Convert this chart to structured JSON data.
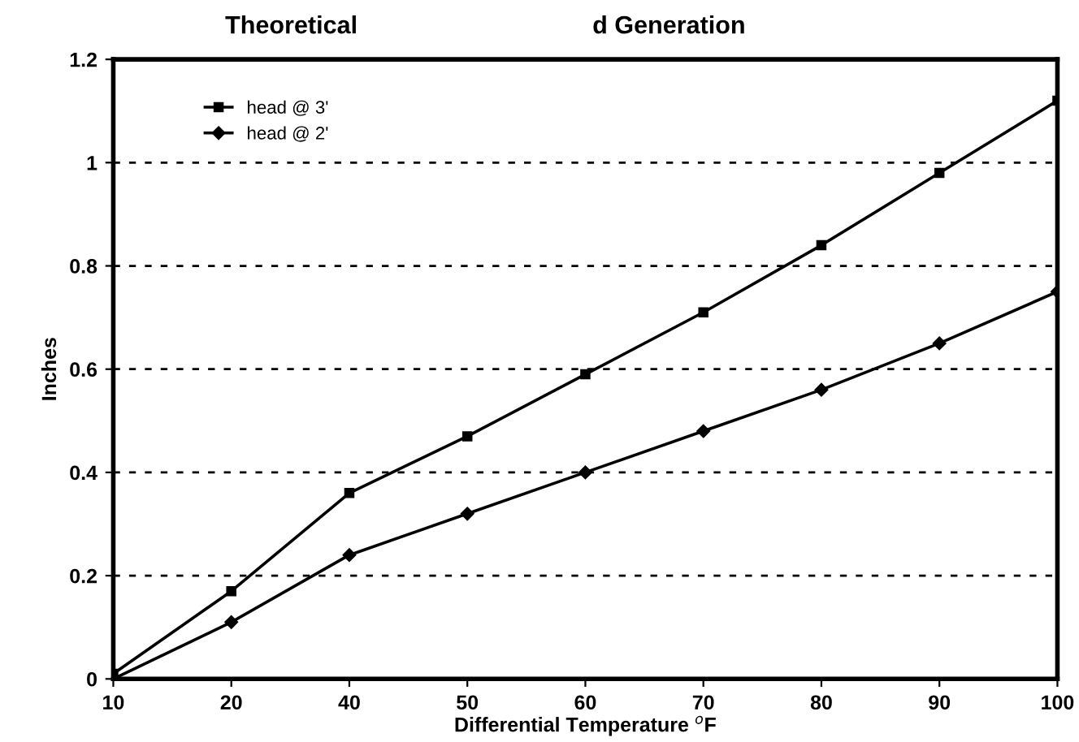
{
  "chart_data": {
    "type": "line",
    "title": "Theoretical",
    "subtitle": "d Generation",
    "xlabel": "Differential Temperature $^{o}$F",
    "ylabel": "Inches",
    "categories": [
      "10",
      "20",
      "40",
      "50",
      "60",
      "70",
      "80",
      "90",
      "100"
    ],
    "series": [
      {
        "name": "head @ 3'",
        "color": "#000000",
        "marker": "square",
        "values": [
          0.01,
          0.17,
          0.36,
          0.47,
          0.59,
          0.71,
          0.84,
          0.98,
          1.12
        ]
      },
      {
        "name": "head @ 2'",
        "color": "#000000",
        "marker": "diamond",
        "values": [
          0.0,
          0.11,
          0.24,
          0.32,
          0.4,
          0.48,
          0.56,
          0.65,
          0.75
        ]
      }
    ],
    "ylim": [
      0,
      1.2
    ],
    "yticks": [
      0,
      0.2,
      0.4,
      0.6,
      0.8,
      1,
      1.2
    ],
    "grid": "y",
    "legend": "top left",
    "line_style": "solid"
  }
}
